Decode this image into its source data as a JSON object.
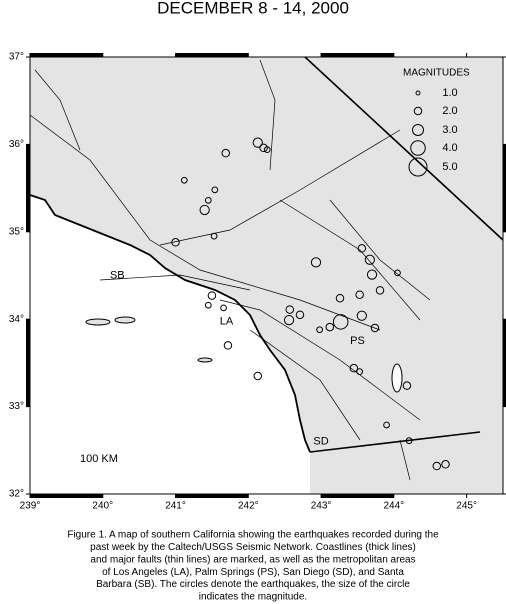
{
  "title": "DECEMBER 8 - 14, 2000",
  "map": {
    "xlim": [
      239,
      245.5
    ],
    "ylim": [
      32,
      37
    ],
    "xticks": [
      {
        "value": 239,
        "label": "239°"
      },
      {
        "value": 240,
        "label": "240°"
      },
      {
        "value": 241,
        "label": "241°"
      },
      {
        "value": 242,
        "label": "242°"
      },
      {
        "value": 243,
        "label": "243°"
      },
      {
        "value": 244,
        "label": "244°"
      },
      {
        "value": 245,
        "label": "245°"
      }
    ],
    "yticks": [
      {
        "value": 32,
        "label": "32°"
      },
      {
        "value": 33,
        "label": "33°"
      },
      {
        "value": 34,
        "label": "34°"
      },
      {
        "value": 35,
        "label": "35°"
      },
      {
        "value": 36,
        "label": "36°"
      },
      {
        "value": 37,
        "label": "37°"
      }
    ],
    "places": [
      {
        "label": "SB",
        "lon": 240.2,
        "lat": 34.5
      },
      {
        "label": "LA",
        "lon": 241.7,
        "lat": 33.97
      },
      {
        "label": "PS",
        "lon": 243.5,
        "lat": 33.75
      },
      {
        "label": "SD",
        "lon": 243.0,
        "lat": 32.6
      }
    ],
    "scale_label": "100 KM",
    "legend": {
      "title": "MAGNITUDES",
      "items": [
        {
          "value": 1,
          "label": "1.0"
        },
        {
          "value": 2,
          "label": "2.0"
        },
        {
          "value": 3,
          "label": "3.0"
        },
        {
          "value": 4,
          "label": "4.0"
        },
        {
          "value": 5,
          "label": "5.0"
        }
      ]
    },
    "quakes": [
      {
        "lon": 242.13,
        "lat": 36.02,
        "mag": 2.5
      },
      {
        "lon": 242.21,
        "lat": 35.96,
        "mag": 2
      },
      {
        "lon": 242.26,
        "lat": 35.94,
        "mag": 1.5
      },
      {
        "lon": 241.69,
        "lat": 35.9,
        "mag": 2
      },
      {
        "lon": 241.54,
        "lat": 35.48,
        "mag": 1.5
      },
      {
        "lon": 241.4,
        "lat": 35.25,
        "mag": 2.5
      },
      {
        "lon": 241.45,
        "lat": 35.36,
        "mag": 1.5
      },
      {
        "lon": 241.53,
        "lat": 34.95,
        "mag": 1.5
      },
      {
        "lon": 241.0,
        "lat": 34.88,
        "mag": 2
      },
      {
        "lon": 242.93,
        "lat": 34.65,
        "mag": 2.5
      },
      {
        "lon": 243.56,
        "lat": 34.81,
        "mag": 2
      },
      {
        "lon": 243.67,
        "lat": 34.68,
        "mag": 2.5
      },
      {
        "lon": 243.7,
        "lat": 34.51,
        "mag": 2.5
      },
      {
        "lon": 243.81,
        "lat": 34.33,
        "mag": 2
      },
      {
        "lon": 244.05,
        "lat": 34.53,
        "mag": 1.5
      },
      {
        "lon": 243.53,
        "lat": 34.28,
        "mag": 2
      },
      {
        "lon": 243.26,
        "lat": 34.24,
        "mag": 2
      },
      {
        "lon": 241.5,
        "lat": 34.27,
        "mag": 2
      },
      {
        "lon": 241.45,
        "lat": 34.16,
        "mag": 1.5
      },
      {
        "lon": 242.57,
        "lat": 34.11,
        "mag": 2
      },
      {
        "lon": 242.71,
        "lat": 34.05,
        "mag": 2
      },
      {
        "lon": 242.56,
        "lat": 33.99,
        "mag": 2.5
      },
      {
        "lon": 243.27,
        "lat": 33.97,
        "mag": 4
      },
      {
        "lon": 243.12,
        "lat": 33.91,
        "mag": 2
      },
      {
        "lon": 242.98,
        "lat": 33.88,
        "mag": 1.5
      },
      {
        "lon": 243.56,
        "lat": 34.04,
        "mag": 2.5
      },
      {
        "lon": 243.74,
        "lat": 33.9,
        "mag": 2
      },
      {
        "lon": 241.72,
        "lat": 33.7,
        "mag": 2
      },
      {
        "lon": 242.13,
        "lat": 33.35,
        "mag": 2
      },
      {
        "lon": 243.45,
        "lat": 33.44,
        "mag": 2
      },
      {
        "lon": 243.53,
        "lat": 33.4,
        "mag": 1.5
      },
      {
        "lon": 244.18,
        "lat": 33.24,
        "mag": 2
      },
      {
        "lon": 243.9,
        "lat": 32.79,
        "mag": 1.5
      },
      {
        "lon": 244.21,
        "lat": 32.61,
        "mag": 1.5
      },
      {
        "lon": 244.71,
        "lat": 32.34,
        "mag": 2
      },
      {
        "lon": 244.59,
        "lat": 32.32,
        "mag": 2
      },
      {
        "lon": 241.12,
        "lat": 35.59,
        "mag": 1.5
      },
      {
        "lon": 241.66,
        "lat": 34.13,
        "mag": 1.5
      }
    ]
  },
  "caption": [
    "Figure 1. A map of southern California showing the earthquakes recorded during the",
    "past week by the Caltech/USGS Seismic Network.  Coastlines (thick lines)",
    "and major faults (thin lines) are marked, as well as the metropolitan areas",
    "of Los Angeles (LA), Palm Springs (PS), San Diego (SD), and Santa",
    "Barbara (SB).  The circles denote the earthquakes, the size of the circle",
    "indicates the magnitude."
  ]
}
